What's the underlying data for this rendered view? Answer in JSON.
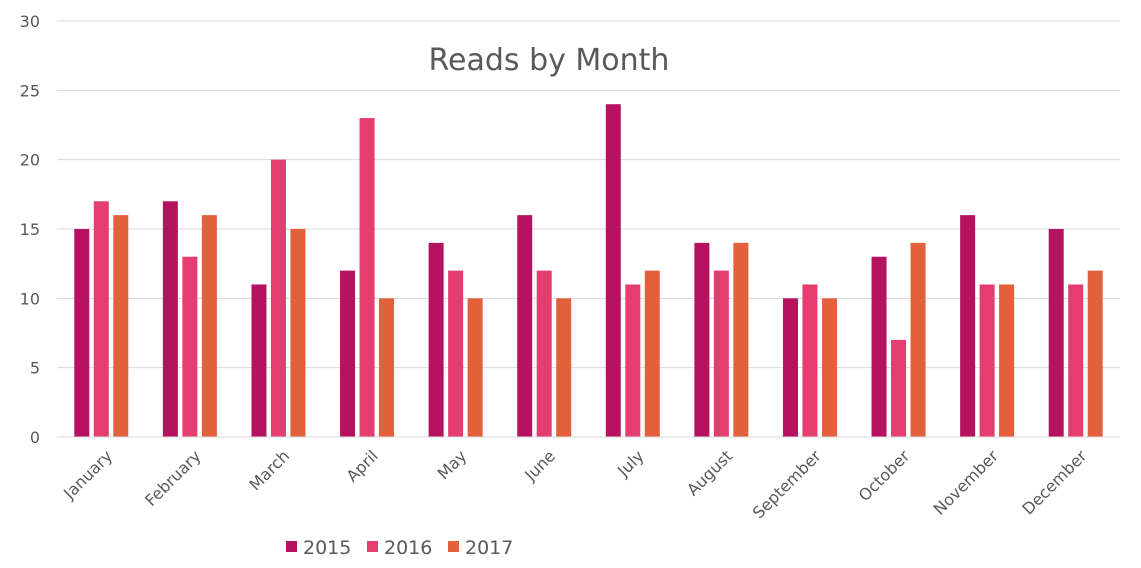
{
  "chart_data": {
    "type": "bar",
    "title": "Reads by Month",
    "categories": [
      "January",
      "February",
      "March",
      "April",
      "May",
      "June",
      "July",
      "August",
      "September",
      "October",
      "November",
      "December"
    ],
    "series": [
      {
        "name": "2015",
        "color": "#b5135f",
        "values": [
          15,
          17,
          11,
          12,
          14,
          16,
          24,
          14,
          10,
          13,
          16,
          15
        ]
      },
      {
        "name": "2016",
        "color": "#e43d6f",
        "values": [
          17,
          13,
          20,
          23,
          12,
          12,
          11,
          12,
          11,
          7,
          11,
          11
        ]
      },
      {
        "name": "2017",
        "color": "#e2603b",
        "values": [
          16,
          16,
          15,
          10,
          10,
          10,
          12,
          14,
          10,
          14,
          11,
          12
        ]
      }
    ],
    "ylim": [
      0,
      30
    ],
    "yticks": [
      0,
      5,
      10,
      15,
      20,
      25,
      30
    ],
    "grid": true,
    "legend_position": "bottom"
  }
}
